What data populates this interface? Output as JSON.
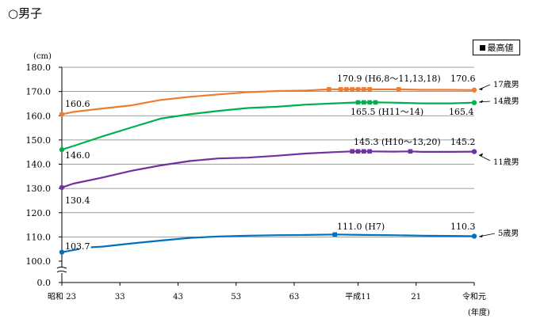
{
  "page_title": "○男子",
  "legend": {
    "label": "最高値",
    "marker": "black-square"
  },
  "colors": {
    "17歳男": "#ED7D31",
    "14歳男": "#00B050",
    "11歳男": "#7030A0",
    "5歳男": "#0070C0",
    "grid": "#7f7f7f"
  },
  "chart_data": {
    "type": "line",
    "y_unit": "(cm)",
    "x_unit": "(年度)",
    "ylim": [
      0,
      180
    ],
    "y_ticks": [
      "0.0",
      "100.0",
      "110.0",
      "120.0",
      "130.0",
      "140.0",
      "150.0",
      "160.0",
      "170.0",
      "180.0"
    ],
    "y_axis_break": true,
    "x_ticks": [
      "昭和 23",
      "33",
      "43",
      "53",
      "63",
      "平成11",
      "21",
      "令和元"
    ],
    "grid": "horizontal",
    "series": [
      {
        "name": "17歳男",
        "points": [
          [
            1948,
            160.6
          ],
          [
            1950,
            161.6
          ],
          [
            1955,
            163.0
          ],
          [
            1960,
            164.3
          ],
          [
            1965,
            166.5
          ],
          [
            1970,
            167.8
          ],
          [
            1975,
            168.8
          ],
          [
            1980,
            169.7
          ],
          [
            1985,
            170.2
          ],
          [
            1990,
            170.4
          ],
          [
            1994,
            170.9
          ],
          [
            1999,
            170.9
          ],
          [
            2006,
            170.9
          ],
          [
            2010,
            170.7
          ],
          [
            2015,
            170.7
          ],
          [
            2019,
            170.6
          ]
        ],
        "max_markers": [
          1994,
          1996,
          1997,
          1998,
          1999,
          2000,
          2001,
          2006
        ],
        "labels": [
          {
            "text": "160.6"
          },
          {
            "text": "170.9 (H6,8～11,13,18)"
          },
          {
            "text": "170.6"
          }
        ]
      },
      {
        "name": "14歳男",
        "points": [
          [
            1948,
            146.0
          ],
          [
            1950,
            147.5
          ],
          [
            1955,
            151.5
          ],
          [
            1960,
            155.2
          ],
          [
            1965,
            158.8
          ],
          [
            1970,
            160.6
          ],
          [
            1975,
            162.0
          ],
          [
            1980,
            163.2
          ],
          [
            1985,
            163.7
          ],
          [
            1990,
            164.6
          ],
          [
            1995,
            165.1
          ],
          [
            1999,
            165.5
          ],
          [
            2002,
            165.5
          ],
          [
            2005,
            165.4
          ],
          [
            2010,
            165.1
          ],
          [
            2015,
            165.1
          ],
          [
            2019,
            165.4
          ]
        ],
        "max_markers": [
          1999,
          2000,
          2001,
          2002
        ],
        "labels": [
          {
            "text": "146.0"
          },
          {
            "text": "165.5 (H11～14)"
          },
          {
            "text": "165.4"
          }
        ]
      },
      {
        "name": "11歳男",
        "points": [
          [
            1948,
            130.4
          ],
          [
            1950,
            132.0
          ],
          [
            1955,
            134.5
          ],
          [
            1960,
            137.3
          ],
          [
            1965,
            139.5
          ],
          [
            1970,
            141.3
          ],
          [
            1975,
            142.4
          ],
          [
            1980,
            142.7
          ],
          [
            1985,
            143.5
          ],
          [
            1990,
            144.4
          ],
          [
            1995,
            145.0
          ],
          [
            1998,
            145.3
          ],
          [
            2001,
            145.3
          ],
          [
            2005,
            145.2
          ],
          [
            2008,
            145.3
          ],
          [
            2010,
            145.1
          ],
          [
            2015,
            145.1
          ],
          [
            2019,
            145.2
          ]
        ],
        "max_markers": [
          1998,
          1999,
          2000,
          2001,
          2008
        ],
        "labels": [
          {
            "text": "130.4"
          },
          {
            "text": "145.3 (H10～13,20)"
          },
          {
            "text": "145.2"
          }
        ]
      },
      {
        "name": "5歳男",
        "segments": [
          [
            [
              1948,
              103.7
            ],
            [
              1951,
              105.0
            ]
          ],
          [
            [
              1953,
              105.7
            ],
            [
              1955,
              106.0
            ],
            [
              1960,
              107.3
            ],
            [
              1965,
              108.5
            ],
            [
              1970,
              109.6
            ],
            [
              1975,
              110.2
            ],
            [
              1980,
              110.5
            ],
            [
              1985,
              110.7
            ],
            [
              1990,
              110.8
            ],
            [
              1995,
              111.0
            ],
            [
              2000,
              110.8
            ],
            [
              2005,
              110.7
            ],
            [
              2010,
              110.5
            ],
            [
              2015,
              110.4
            ],
            [
              2019,
              110.3
            ]
          ]
        ],
        "max_markers": [
          1995
        ],
        "labels": [
          {
            "text": "103.7"
          },
          {
            "text": "111.0 (H7)"
          },
          {
            "text": "110.3"
          }
        ]
      }
    ]
  }
}
